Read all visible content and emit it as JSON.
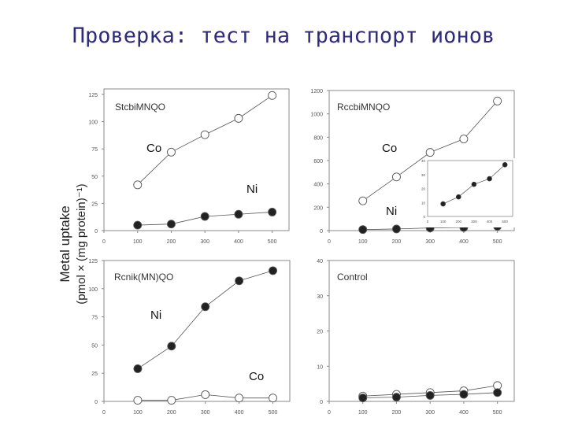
{
  "title": "Проверка: тест на транспорт ионов",
  "shared_ylabel_line1": "Metal uptake",
  "shared_ylabel_line2": "(pmol × (mg protein)⁻¹)",
  "chart_data": [
    {
      "type": "line",
      "title": "StcbiMNQO",
      "x": [
        100,
        200,
        300,
        400,
        500
      ],
      "x_ticks": [
        0,
        100,
        200,
        300,
        400,
        500
      ],
      "y_ticks": [
        0,
        25,
        50,
        75,
        100,
        125
      ],
      "ylim": [
        0,
        130
      ],
      "xlim": [
        0,
        550
      ],
      "xlabel": "",
      "ylabel": "Metal uptake (pmol × (mg protein)⁻¹)",
      "series": [
        {
          "name": "Co",
          "marker": "open-circle",
          "values": [
            42,
            72,
            88,
            103,
            124
          ]
        },
        {
          "name": "Ni",
          "marker": "filled-circle",
          "values": [
            5,
            6,
            13,
            15,
            17
          ]
        }
      ],
      "annotations": [
        "Co",
        "Ni"
      ]
    },
    {
      "type": "line",
      "title": "RccbiMNQO",
      "x": [
        100,
        200,
        300,
        400,
        500
      ],
      "x_ticks": [
        0,
        100,
        200,
        300,
        400,
        500
      ],
      "y_ticks": [
        0,
        200,
        400,
        600,
        800,
        1000,
        1200
      ],
      "ylim": [
        0,
        1200
      ],
      "xlim": [
        0,
        550
      ],
      "series": [
        {
          "name": "Co",
          "marker": "open-circle",
          "values": [
            255,
            460,
            670,
            785,
            1110
          ]
        },
        {
          "name": "Ni",
          "marker": "filled-circle",
          "values": [
            9,
            14,
            23,
            27,
            37
          ]
        }
      ],
      "annotations": [
        "Co",
        "Ni"
      ],
      "inset": {
        "type": "line",
        "x": [
          100,
          200,
          300,
          400,
          500
        ],
        "x_ticks": [
          0,
          100,
          200,
          300,
          400,
          500
        ],
        "y_ticks": [
          0,
          10,
          20,
          30,
          40
        ],
        "ylim": [
          0,
          40
        ],
        "series": [
          {
            "name": "Ni",
            "marker": "filled-circle",
            "values": [
              9,
              14,
              23,
              27,
              37
            ]
          }
        ]
      }
    },
    {
      "type": "line",
      "title": "Rcnik(MN)QO",
      "x": [
        100,
        200,
        300,
        400,
        500
      ],
      "x_ticks": [
        0,
        100,
        200,
        300,
        400,
        500
      ],
      "y_ticks": [
        0,
        25,
        50,
        75,
        100,
        125
      ],
      "ylim": [
        0,
        125
      ],
      "xlim": [
        0,
        550
      ],
      "series": [
        {
          "name": "Ni",
          "marker": "filled-circle",
          "values": [
            29,
            49,
            84,
            107,
            116
          ]
        },
        {
          "name": "Co",
          "marker": "open-circle",
          "values": [
            1,
            1,
            6,
            3,
            3
          ]
        }
      ],
      "annotations": [
        "Ni",
        "Co"
      ]
    },
    {
      "type": "line",
      "title": "Control",
      "x": [
        100,
        200,
        300,
        400,
        500
      ],
      "x_ticks": [
        0,
        100,
        200,
        300,
        400,
        500
      ],
      "y_ticks": [
        0,
        10,
        20,
        30,
        40
      ],
      "ylim": [
        0,
        40
      ],
      "xlim": [
        0,
        550
      ],
      "series": [
        {
          "name": "Co",
          "marker": "open-circle",
          "values": [
            1.5,
            2,
            2.5,
            3,
            4.5
          ]
        },
        {
          "name": "Ni",
          "marker": "filled-circle",
          "values": [
            1,
            1.2,
            1.7,
            2,
            2.5
          ]
        }
      ],
      "annotations": []
    }
  ]
}
